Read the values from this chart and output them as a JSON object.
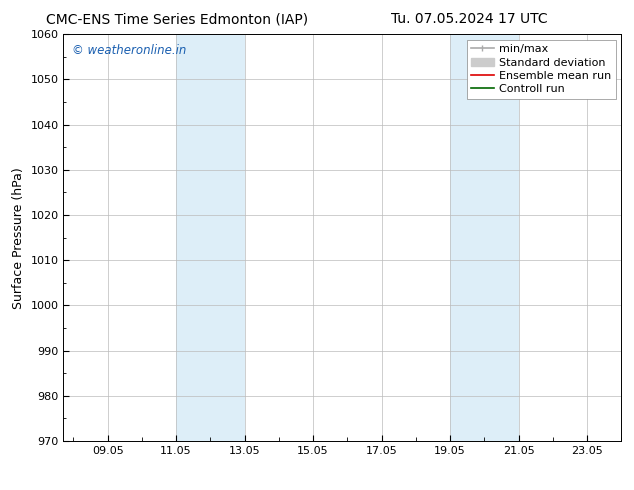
{
  "title_left": "CMC-ENS Time Series Edmonton (IAP)",
  "title_right": "Tu. 07.05.2024 17 UTC",
  "ylabel": "Surface Pressure (hPa)",
  "ylim": [
    970,
    1060
  ],
  "yticks": [
    970,
    980,
    990,
    1000,
    1010,
    1020,
    1030,
    1040,
    1050,
    1060
  ],
  "xlim": [
    7.708,
    24.0
  ],
  "xtick_labels": [
    "09.05",
    "11.05",
    "13.05",
    "15.05",
    "17.05",
    "19.05",
    "21.05",
    "23.05"
  ],
  "xtick_positions": [
    9.0,
    11.0,
    13.0,
    15.0,
    17.0,
    19.0,
    21.0,
    23.0
  ],
  "shaded_bands": [
    {
      "xmin": 11.0,
      "xmax": 13.0
    },
    {
      "xmin": 19.0,
      "xmax": 21.0
    }
  ],
  "shaded_color": "#ddeef8",
  "watermark_text": "© weatheronline.in",
  "watermark_color": "#1a5fb0",
  "watermark_fontsize": 8.5,
  "legend_items": [
    {
      "label": "min/max",
      "color": "#aaaaaa",
      "lw": 1.2
    },
    {
      "label": "Standard deviation",
      "color": "#cccccc",
      "lw": 5
    },
    {
      "label": "Ensemble mean run",
      "color": "#dd0000",
      "lw": 1.2
    },
    {
      "label": "Controll run",
      "color": "#006600",
      "lw": 1.2
    }
  ],
  "background_color": "#ffffff",
  "grid_color": "#bbbbbb",
  "title_fontsize": 10,
  "tick_fontsize": 8,
  "ylabel_fontsize": 9,
  "legend_fontsize": 8
}
